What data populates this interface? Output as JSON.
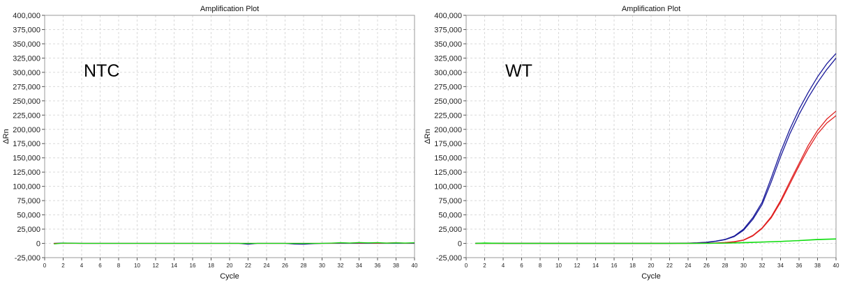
{
  "chart_data": [
    {
      "type": "line",
      "title": "Amplification Plot",
      "xlabel": "Cycle",
      "ylabel": "ΔRn",
      "annotation": "NTC",
      "xlim": [
        0,
        40
      ],
      "ylim": [
        -25000,
        400000
      ],
      "x_ticks": [
        0,
        2,
        4,
        6,
        8,
        10,
        12,
        14,
        16,
        18,
        20,
        22,
        24,
        26,
        28,
        30,
        32,
        34,
        36,
        38,
        40
      ],
      "y_ticks": [
        -25000,
        0,
        25000,
        50000,
        75000,
        100000,
        125000,
        150000,
        175000,
        200000,
        225000,
        250000,
        275000,
        300000,
        325000,
        350000,
        375000,
        400000
      ],
      "y_tick_labels": [
        "-25,000",
        "0",
        "25,000",
        "50,000",
        "75,000",
        "100,000",
        "125,000",
        "150,000",
        "175,000",
        "200,000",
        "225,000",
        "250,000",
        "275,000",
        "300,000",
        "325,000",
        "350,000",
        "375,000",
        "400,000"
      ],
      "grid": true,
      "series": [
        {
          "color": "#1a1a9a",
          "x": [
            1,
            2,
            4,
            8,
            12,
            16,
            20,
            21,
            22,
            23,
            24,
            26,
            27,
            28,
            29,
            30,
            32,
            34,
            36,
            38,
            40
          ],
          "y": [
            0,
            600,
            0,
            0,
            0,
            0,
            0,
            0,
            -1500,
            0,
            0,
            0,
            -1200,
            -1500,
            -600,
            0,
            0,
            0,
            0,
            0,
            0
          ]
        },
        {
          "color": "#e02020",
          "x": [
            1,
            2,
            4,
            8,
            12,
            16,
            20,
            24,
            28,
            30,
            31,
            32,
            33,
            34,
            35,
            36,
            37,
            38,
            39,
            40
          ],
          "y": [
            0,
            0,
            0,
            0,
            0,
            0,
            0,
            0,
            0,
            0,
            200,
            800,
            500,
            900,
            700,
            400,
            600,
            1000,
            300,
            800
          ]
        },
        {
          "color": "#10dd10",
          "x": [
            1,
            2,
            4,
            8,
            12,
            16,
            20,
            24,
            28,
            30,
            31,
            32,
            33,
            34,
            35,
            36,
            37,
            38,
            39,
            40
          ],
          "y": [
            -1000,
            500,
            0,
            0,
            0,
            0,
            0,
            0,
            0,
            0,
            500,
            1200,
            600,
            1500,
            900,
            1300,
            400,
            900,
            600,
            1100
          ]
        }
      ]
    },
    {
      "type": "line",
      "title": "Amplification Plot",
      "xlabel": "Cycle",
      "ylabel": "ΔRn",
      "annotation": "WT",
      "xlim": [
        0,
        40
      ],
      "ylim": [
        -25000,
        400000
      ],
      "x_ticks": [
        0,
        2,
        4,
        6,
        8,
        10,
        12,
        14,
        16,
        18,
        20,
        22,
        24,
        26,
        28,
        30,
        32,
        34,
        36,
        38,
        40
      ],
      "y_ticks": [
        -25000,
        0,
        25000,
        50000,
        75000,
        100000,
        125000,
        150000,
        175000,
        200000,
        225000,
        250000,
        275000,
        300000,
        325000,
        350000,
        375000,
        400000
      ],
      "y_tick_labels": [
        "-25,000",
        "0",
        "25,000",
        "50,000",
        "75,000",
        "100,000",
        "125,000",
        "150,000",
        "175,000",
        "200,000",
        "225,000",
        "250,000",
        "275,000",
        "300,000",
        "325,000",
        "350,000",
        "375,000",
        "400,000"
      ],
      "grid": true,
      "series": [
        {
          "color": "#1a1a9a",
          "x": [
            1,
            2,
            4,
            8,
            12,
            16,
            20,
            22,
            24,
            25,
            26,
            27,
            28,
            29,
            30,
            31,
            32,
            33,
            34,
            35,
            36,
            37,
            38,
            39,
            40
          ],
          "y": [
            0,
            500,
            0,
            0,
            0,
            0,
            0,
            0,
            500,
            1000,
            2000,
            4000,
            7000,
            13000,
            25000,
            45000,
            72000,
            115000,
            160000,
            200000,
            235000,
            265000,
            292000,
            315000,
            333000
          ]
        },
        {
          "color": "#1a1a9a",
          "x": [
            1,
            2,
            4,
            8,
            12,
            16,
            20,
            22,
            24,
            25,
            26,
            27,
            28,
            29,
            30,
            31,
            32,
            33,
            34,
            35,
            36,
            37,
            38,
            39,
            40
          ],
          "y": [
            0,
            0,
            0,
            0,
            0,
            0,
            0,
            0,
            300,
            800,
            1800,
            3500,
            6500,
            12000,
            23000,
            42000,
            68000,
            108000,
            152000,
            192000,
            226000,
            256000,
            282000,
            305000,
            325000
          ]
        },
        {
          "color": "#e02020",
          "x": [
            1,
            4,
            8,
            12,
            16,
            20,
            24,
            26,
            27,
            28,
            29,
            30,
            31,
            32,
            33,
            34,
            35,
            36,
            37,
            38,
            39,
            40
          ],
          "y": [
            0,
            0,
            0,
            0,
            0,
            0,
            0,
            300,
            700,
            1500,
            3000,
            6000,
            14000,
            27000,
            47000,
            75000,
            108000,
            140000,
            172000,
            198000,
            218000,
            232000
          ]
        },
        {
          "color": "#e02020",
          "x": [
            1,
            4,
            8,
            12,
            16,
            20,
            24,
            26,
            27,
            28,
            29,
            30,
            31,
            32,
            33,
            34,
            35,
            36,
            37,
            38,
            39,
            40
          ],
          "y": [
            0,
            0,
            0,
            0,
            0,
            0,
            0,
            200,
            500,
            1200,
            2500,
            5500,
            13000,
            26000,
            45000,
            72000,
            104000,
            136000,
            166000,
            192000,
            211000,
            224000
          ]
        },
        {
          "color": "#10dd10",
          "x": [
            1,
            2,
            4,
            8,
            12,
            16,
            20,
            24,
            26,
            28,
            30,
            32,
            34,
            36,
            38,
            40
          ],
          "y": [
            0,
            800,
            0,
            0,
            0,
            0,
            0,
            0,
            0,
            500,
            1500,
            2500,
            3500,
            5000,
            7000,
            8000
          ]
        },
        {
          "color": "#10dd10",
          "x": [
            1,
            4,
            8,
            12,
            16,
            20,
            24,
            26,
            28,
            30,
            32,
            34,
            36,
            38,
            40
          ],
          "y": [
            0,
            0,
            0,
            0,
            0,
            0,
            0,
            0,
            300,
            1000,
            2200,
            3300,
            4800,
            6500,
            7500
          ]
        }
      ]
    }
  ]
}
